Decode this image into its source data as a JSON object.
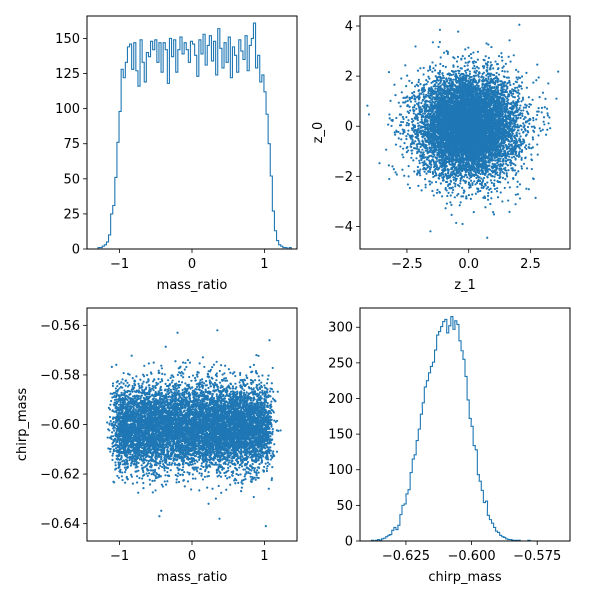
{
  "colors": {
    "series": "#1f77b4",
    "axes": "#000000",
    "background": "#ffffff"
  },
  "chart_data": [
    {
      "panel": "top-left",
      "type": "histogram",
      "style": "step",
      "xlabel": "mass_ratio",
      "ylabel": "",
      "xlim": [
        -1.45,
        1.45
      ],
      "ylim": [
        0,
        166
      ],
      "xticks": [
        -1,
        0,
        1
      ],
      "xtick_labels": [
        "−1",
        "0",
        "1"
      ],
      "yticks": [
        0,
        25,
        50,
        75,
        100,
        125,
        150
      ],
      "ytick_labels": [
        "0",
        "25",
        "50",
        "75",
        "100",
        "125",
        "150"
      ],
      "x": [
        -1.312,
        -1.283,
        -1.254,
        -1.225,
        -1.196,
        -1.167,
        -1.138,
        -1.109,
        -1.08,
        -1.051,
        -1.022,
        -0.993,
        -0.964,
        -0.935,
        -0.906,
        -0.877,
        -0.848,
        -0.819,
        -0.79,
        -0.761,
        -0.732,
        -0.703,
        -0.674,
        -0.645,
        -0.616,
        -0.587,
        -0.558,
        -0.529,
        -0.5,
        -0.471,
        -0.442,
        -0.413,
        -0.384,
        -0.355,
        -0.326,
        -0.297,
        -0.268,
        -0.239,
        -0.21,
        -0.181,
        -0.152,
        -0.123,
        -0.094,
        -0.065,
        -0.036,
        -0.007,
        0.022,
        0.051,
        0.08,
        0.109,
        0.138,
        0.167,
        0.196,
        0.225,
        0.254,
        0.283,
        0.312,
        0.341,
        0.37,
        0.399,
        0.428,
        0.457,
        0.486,
        0.515,
        0.544,
        0.573,
        0.602,
        0.631,
        0.66,
        0.689,
        0.718,
        0.747,
        0.776,
        0.805,
        0.834,
        0.863,
        0.892,
        0.921,
        0.95,
        0.979,
        1.008,
        1.037,
        1.066,
        1.095,
        1.124,
        1.153,
        1.182,
        1.211,
        1.24,
        1.269,
        1.298,
        1.327,
        1.356,
        1.385
      ],
      "values": [
        0,
        1,
        1,
        2,
        3,
        5,
        10,
        25,
        31,
        51,
        76,
        98,
        128,
        122,
        133,
        144,
        146,
        128,
        147,
        127,
        116,
        149,
        133,
        119,
        140,
        137,
        148,
        142,
        149,
        133,
        147,
        126,
        147,
        142,
        118,
        150,
        137,
        149,
        126,
        142,
        151,
        139,
        147,
        142,
        133,
        148,
        146,
        138,
        123,
        149,
        139,
        153,
        131,
        145,
        152,
        134,
        148,
        124,
        157,
        143,
        129,
        147,
        133,
        151,
        122,
        144,
        138,
        126,
        149,
        141,
        135,
        152,
        127,
        145,
        150,
        161,
        129,
        138,
        119,
        124,
        112,
        96,
        75,
        52,
        27,
        13,
        6,
        3,
        2,
        1,
        1,
        0,
        1,
        0
      ]
    },
    {
      "panel": "top-right",
      "type": "scatter",
      "xlabel": "z_1",
      "ylabel": "z_0",
      "xlim": [
        -4.4,
        4.1
      ],
      "ylim": [
        -4.9,
        4.4
      ],
      "xticks": [
        -2.5,
        0,
        2.5
      ],
      "xtick_labels": [
        "−2.5",
        "0.0",
        "2.5"
      ],
      "yticks": [
        -4,
        -2,
        0,
        2,
        4
      ],
      "ytick_labels": [
        "−4",
        "−2",
        "0",
        "2",
        "4"
      ],
      "distribution": {
        "x_mean": 0.0,
        "x_std": 1.0,
        "y_mean": 0.0,
        "y_std": 1.0,
        "n_points": 9000,
        "correlation": 0.0
      },
      "outliers": [
        [
          2.05,
          4.05
        ],
        [
          0.75,
          -4.45
        ],
        [
          -4.1,
          0.82
        ],
        [
          3.55,
          1.1
        ],
        [
          -0.25,
          -3.9
        ],
        [
          -1.45,
          3.35
        ]
      ]
    },
    {
      "panel": "bottom-left",
      "type": "scatter",
      "xlabel": "mass_ratio",
      "ylabel": "chirp_mass",
      "xlim": [
        -1.45,
        1.45
      ],
      "ylim": [
        -0.647,
        -0.553
      ],
      "xticks": [
        -1,
        0,
        1
      ],
      "xtick_labels": [
        "−1",
        "0",
        "1"
      ],
      "yticks": [
        -0.64,
        -0.62,
        -0.6,
        -0.58,
        -0.56
      ],
      "ytick_labels": [
        "−0.64",
        "−0.62",
        "−0.60",
        "−0.58",
        "−0.56"
      ],
      "distribution": {
        "x_range": [
          -1.05,
          1.05
        ],
        "x_shape": "flat-with-soft-edges",
        "y_mean": -0.601,
        "y_std": 0.0085,
        "n_points": 9000
      },
      "outliers": [
        [
          1.07,
          -0.566
        ],
        [
          0.35,
          -0.562
        ],
        [
          -0.2,
          -0.563
        ],
        [
          1.02,
          -0.641
        ],
        [
          0.38,
          -0.638
        ],
        [
          -0.45,
          -0.637
        ]
      ]
    },
    {
      "panel": "bottom-right",
      "type": "histogram",
      "style": "step",
      "xlabel": "chirp_mass",
      "ylabel": "",
      "xlim": [
        -0.6425,
        -0.5625
      ],
      "ylim": [
        0,
        327
      ],
      "xticks": [
        -0.625,
        -0.6,
        -0.575
      ],
      "xtick_labels": [
        "−0.625",
        "−0.600",
        "−0.575"
      ],
      "yticks": [
        0,
        50,
        100,
        150,
        200,
        250,
        300
      ],
      "ytick_labels": [
        "0",
        "50",
        "100",
        "150",
        "200",
        "250",
        "300"
      ],
      "x": [
        -0.6385,
        -0.6377,
        -0.637,
        -0.6362,
        -0.6354,
        -0.6346,
        -0.6339,
        -0.6331,
        -0.6323,
        -0.6315,
        -0.6308,
        -0.63,
        -0.6292,
        -0.6284,
        -0.6277,
        -0.6269,
        -0.6261,
        -0.6253,
        -0.6246,
        -0.6238,
        -0.623,
        -0.6222,
        -0.6215,
        -0.6207,
        -0.6199,
        -0.6191,
        -0.6184,
        -0.6176,
        -0.6168,
        -0.616,
        -0.6153,
        -0.6145,
        -0.6137,
        -0.6129,
        -0.6122,
        -0.6114,
        -0.6106,
        -0.6098,
        -0.6091,
        -0.6083,
        -0.6075,
        -0.6067,
        -0.606,
        -0.6052,
        -0.6044,
        -0.6036,
        -0.6029,
        -0.6021,
        -0.6013,
        -0.6005,
        -0.5998,
        -0.599,
        -0.5982,
        -0.5974,
        -0.5967,
        -0.5959,
        -0.5951,
        -0.5943,
        -0.5936,
        -0.5928,
        -0.592,
        -0.5912,
        -0.5905,
        -0.5897,
        -0.5889,
        -0.5881,
        -0.5874,
        -0.5866,
        -0.5858,
        -0.585,
        -0.5843,
        -0.5835,
        -0.5827,
        -0.5819,
        -0.5812,
        -0.5804,
        -0.5796,
        -0.5788,
        -0.5781,
        -0.5773,
        -0.5765,
        -0.5757,
        -0.575,
        -0.5742,
        -0.5734,
        -0.5726,
        -0.5719,
        -0.5711,
        -0.5703,
        -0.5695
      ],
      "values": [
        0,
        1,
        0,
        1,
        2,
        1,
        3,
        4,
        6,
        8,
        9,
        15,
        19,
        16,
        22,
        37,
        50,
        52,
        66,
        72,
        96,
        115,
        121,
        141,
        157,
        178,
        194,
        216,
        225,
        236,
        245,
        251,
        268,
        289,
        294,
        301,
        308,
        311,
        292,
        302,
        315,
        297,
        309,
        304,
        281,
        267,
        255,
        231,
        198,
        172,
        161,
        134,
        128,
        93,
        84,
        71,
        54,
        56,
        36,
        30,
        25,
        19,
        14,
        12,
        8,
        6,
        5,
        3,
        2,
        2,
        1,
        1,
        1,
        1,
        0,
        0,
        0,
        0,
        1,
        0,
        0,
        0,
        0,
        0,
        0,
        0,
        0,
        0,
        0,
        0
      ]
    }
  ]
}
